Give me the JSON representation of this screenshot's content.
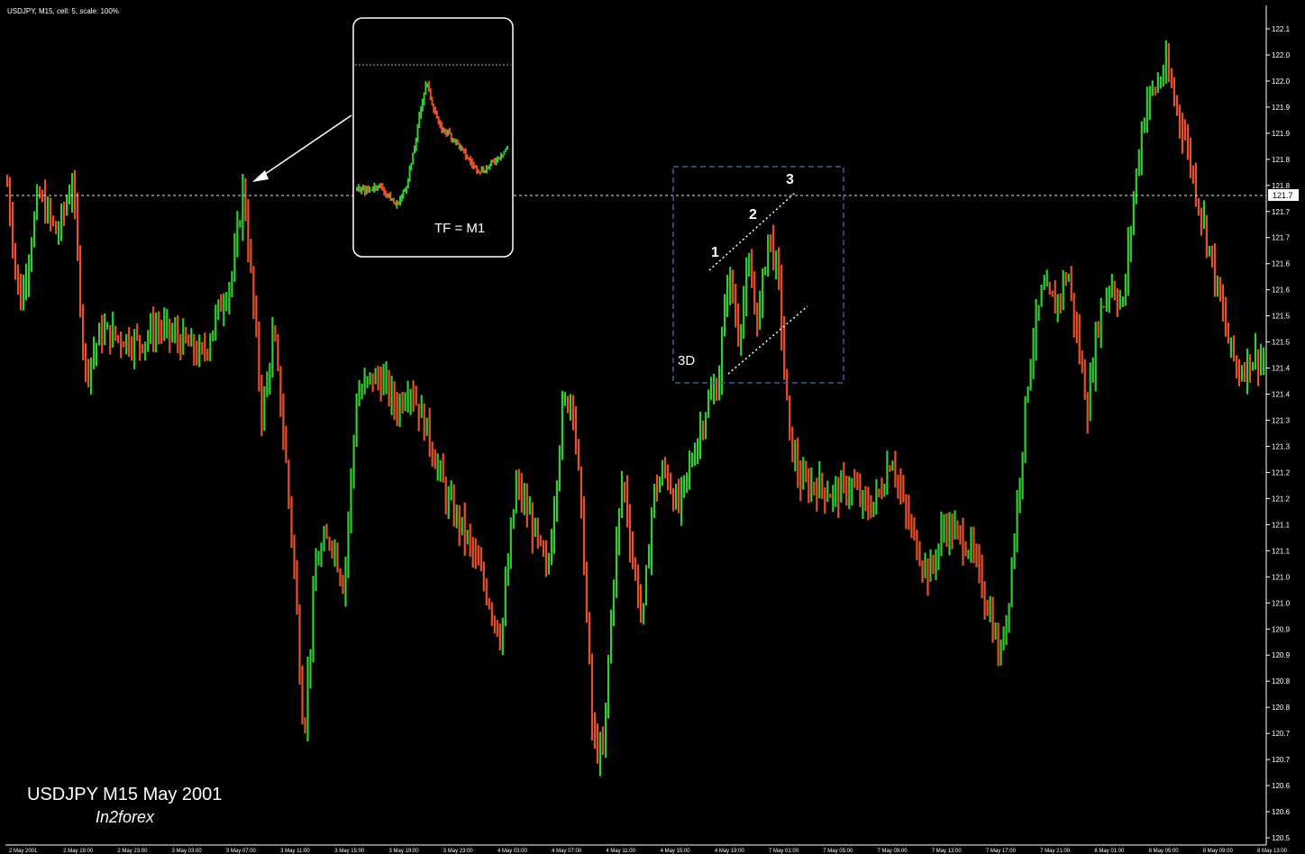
{
  "header": {
    "text": "USDJPY, M15, cell: 5, scale: 100%"
  },
  "price_marker": "121.7",
  "annotations": {
    "inset_label": "TF = M1",
    "box_label": "3D",
    "point_1": "1",
    "point_2": "2",
    "point_3": "3",
    "title": "USDJPY M15 May 2001",
    "brand": "In2forex"
  },
  "colors": {
    "background": "#000000",
    "up_bar": "#33cc33",
    "down_bar": "#e8502a",
    "text": "#ffffff",
    "box_border": "#3a5f9f"
  },
  "chart_data": {
    "type": "line",
    "symbol": "USDJPY",
    "timeframe": "M15",
    "price_axis": {
      "ticks": [
        "122.1",
        "122.0",
        "122.0",
        "121.9",
        "121.9",
        "121.8",
        "121.8",
        "121.7",
        "121.7",
        "121.6",
        "121.6",
        "121.5",
        "121.5",
        "121.4",
        "121.4",
        "121.3",
        "121.3",
        "121.2",
        "121.2",
        "121.1",
        "121.1",
        "121.0",
        "121.0",
        "120.9",
        "120.9",
        "120.8",
        "120.8",
        "120.7",
        "120.7",
        "120.6",
        "120.6",
        "120.5"
      ],
      "ylim": [
        120.5,
        122.1
      ]
    },
    "time_axis": {
      "ticks": [
        "2 May 2001",
        "2 May 19:00",
        "2 May 23:00",
        "3 May 03:00",
        "3 May 07:00",
        "3 May 11:00",
        "3 May 15:00",
        "3 May 19:00",
        "3 May 23:00",
        "4 May 03:00",
        "4 May 07:00",
        "4 May 11:00",
        "4 May 15:00",
        "4 May 19:00",
        "7 May 01:00",
        "7 May 05:00",
        "7 May 09:00",
        "7 May 13:00",
        "7 May 17:00",
        "7 May 21:00",
        "8 May 01:00",
        "8 May 05:00",
        "8 May 09:00",
        "8 May 13:00"
      ]
    },
    "price_path": [
      {
        "t": 0.0,
        "p": 121.79
      },
      {
        "t": 0.01,
        "p": 121.55
      },
      {
        "t": 0.025,
        "p": 121.77
      },
      {
        "t": 0.04,
        "p": 121.69
      },
      {
        "t": 0.052,
        "p": 121.8
      },
      {
        "t": 0.062,
        "p": 121.42
      },
      {
        "t": 0.075,
        "p": 121.5
      },
      {
        "t": 0.09,
        "p": 121.49
      },
      {
        "t": 0.105,
        "p": 121.48
      },
      {
        "t": 0.12,
        "p": 121.51
      },
      {
        "t": 0.14,
        "p": 121.48
      },
      {
        "t": 0.155,
        "p": 121.45
      },
      {
        "t": 0.168,
        "p": 121.54
      },
      {
        "t": 0.18,
        "p": 121.62
      },
      {
        "t": 0.188,
        "p": 121.79
      },
      {
        "t": 0.196,
        "p": 121.55
      },
      {
        "t": 0.203,
        "p": 121.33
      },
      {
        "t": 0.212,
        "p": 121.5
      },
      {
        "t": 0.22,
        "p": 121.3
      },
      {
        "t": 0.228,
        "p": 121.05
      },
      {
        "t": 0.236,
        "p": 120.71
      },
      {
        "t": 0.246,
        "p": 121.05
      },
      {
        "t": 0.258,
        "p": 121.1
      },
      {
        "t": 0.268,
        "p": 121.0
      },
      {
        "t": 0.278,
        "p": 121.37
      },
      {
        "t": 0.29,
        "p": 121.41
      },
      {
        "t": 0.3,
        "p": 121.4
      },
      {
        "t": 0.31,
        "p": 121.35
      },
      {
        "t": 0.32,
        "p": 121.4
      },
      {
        "t": 0.335,
        "p": 121.3
      },
      {
        "t": 0.35,
        "p": 121.17
      },
      {
        "t": 0.365,
        "p": 121.1
      },
      {
        "t": 0.38,
        "p": 121.0
      },
      {
        "t": 0.393,
        "p": 120.9
      },
      {
        "t": 0.405,
        "p": 121.2
      },
      {
        "t": 0.418,
        "p": 121.12
      },
      {
        "t": 0.43,
        "p": 121.02
      },
      {
        "t": 0.442,
        "p": 121.35
      },
      {
        "t": 0.45,
        "p": 121.38
      },
      {
        "t": 0.458,
        "p": 121.1
      },
      {
        "t": 0.466,
        "p": 120.7
      },
      {
        "t": 0.474,
        "p": 120.66
      },
      {
        "t": 0.482,
        "p": 121.0
      },
      {
        "t": 0.49,
        "p": 121.22
      },
      {
        "t": 0.498,
        "p": 121.05
      },
      {
        "t": 0.506,
        "p": 120.93
      },
      {
        "t": 0.514,
        "p": 121.18
      },
      {
        "t": 0.524,
        "p": 121.23
      },
      {
        "t": 0.534,
        "p": 121.15
      },
      {
        "t": 0.545,
        "p": 121.25
      },
      {
        "t": 0.556,
        "p": 121.35
      },
      {
        "t": 0.566,
        "p": 121.4
      },
      {
        "t": 0.574,
        "p": 121.62
      },
      {
        "t": 0.582,
        "p": 121.5
      },
      {
        "t": 0.59,
        "p": 121.62
      },
      {
        "t": 0.598,
        "p": 121.52
      },
      {
        "t": 0.606,
        "p": 121.7
      },
      {
        "t": 0.614,
        "p": 121.6
      },
      {
        "t": 0.622,
        "p": 121.3
      },
      {
        "t": 0.632,
        "p": 121.2
      },
      {
        "t": 0.645,
        "p": 121.2
      },
      {
        "t": 0.658,
        "p": 121.18
      },
      {
        "t": 0.672,
        "p": 121.2
      },
      {
        "t": 0.684,
        "p": 121.15
      },
      {
        "t": 0.694,
        "p": 121.18
      },
      {
        "t": 0.704,
        "p": 121.26
      },
      {
        "t": 0.714,
        "p": 121.15
      },
      {
        "t": 0.724,
        "p": 121.08
      },
      {
        "t": 0.734,
        "p": 121.02
      },
      {
        "t": 0.746,
        "p": 121.12
      },
      {
        "t": 0.756,
        "p": 121.1
      },
      {
        "t": 0.766,
        "p": 121.08
      },
      {
        "t": 0.776,
        "p": 121.0
      },
      {
        "t": 0.784,
        "p": 120.93
      },
      {
        "t": 0.79,
        "p": 120.85
      },
      {
        "t": 0.798,
        "p": 121.0
      },
      {
        "t": 0.806,
        "p": 121.22
      },
      {
        "t": 0.814,
        "p": 121.45
      },
      {
        "t": 0.824,
        "p": 121.58
      },
      {
        "t": 0.834,
        "p": 121.55
      },
      {
        "t": 0.844,
        "p": 121.62
      },
      {
        "t": 0.852,
        "p": 121.48
      },
      {
        "t": 0.86,
        "p": 121.35
      },
      {
        "t": 0.868,
        "p": 121.52
      },
      {
        "t": 0.878,
        "p": 121.6
      },
      {
        "t": 0.888,
        "p": 121.55
      },
      {
        "t": 0.898,
        "p": 121.8
      },
      {
        "t": 0.906,
        "p": 121.95
      },
      {
        "t": 0.914,
        "p": 121.98
      },
      {
        "t": 0.922,
        "p": 122.02
      },
      {
        "t": 0.93,
        "p": 121.95
      },
      {
        "t": 0.938,
        "p": 121.88
      },
      {
        "t": 0.946,
        "p": 121.78
      },
      {
        "t": 0.954,
        "p": 121.7
      },
      {
        "t": 0.962,
        "p": 121.6
      },
      {
        "t": 0.972,
        "p": 121.48
      },
      {
        "t": 0.98,
        "p": 121.42
      },
      {
        "t": 0.99,
        "p": 121.45
      }
    ],
    "levels": [
      {
        "p": 121.77,
        "style": "dotted"
      }
    ],
    "inset": {
      "timeframe_label": "TF = M1",
      "price_path": [
        {
          "t": 0.0,
          "p": 0.3
        },
        {
          "t": 0.08,
          "p": 0.3
        },
        {
          "t": 0.14,
          "p": 0.33
        },
        {
          "t": 0.2,
          "p": 0.28
        },
        {
          "t": 0.26,
          "p": 0.22
        },
        {
          "t": 0.32,
          "p": 0.3
        },
        {
          "t": 0.38,
          "p": 0.5
        },
        {
          "t": 0.42,
          "p": 0.7
        },
        {
          "t": 0.46,
          "p": 0.86
        },
        {
          "t": 0.5,
          "p": 0.75
        },
        {
          "t": 0.55,
          "p": 0.62
        },
        {
          "t": 0.6,
          "p": 0.6
        },
        {
          "t": 0.66,
          "p": 0.55
        },
        {
          "t": 0.72,
          "p": 0.48
        },
        {
          "t": 0.78,
          "p": 0.42
        },
        {
          "t": 0.84,
          "p": 0.4
        },
        {
          "t": 0.9,
          "p": 0.44
        },
        {
          "t": 0.95,
          "p": 0.48
        },
        {
          "t": 1.0,
          "p": 0.52
        }
      ]
    }
  }
}
